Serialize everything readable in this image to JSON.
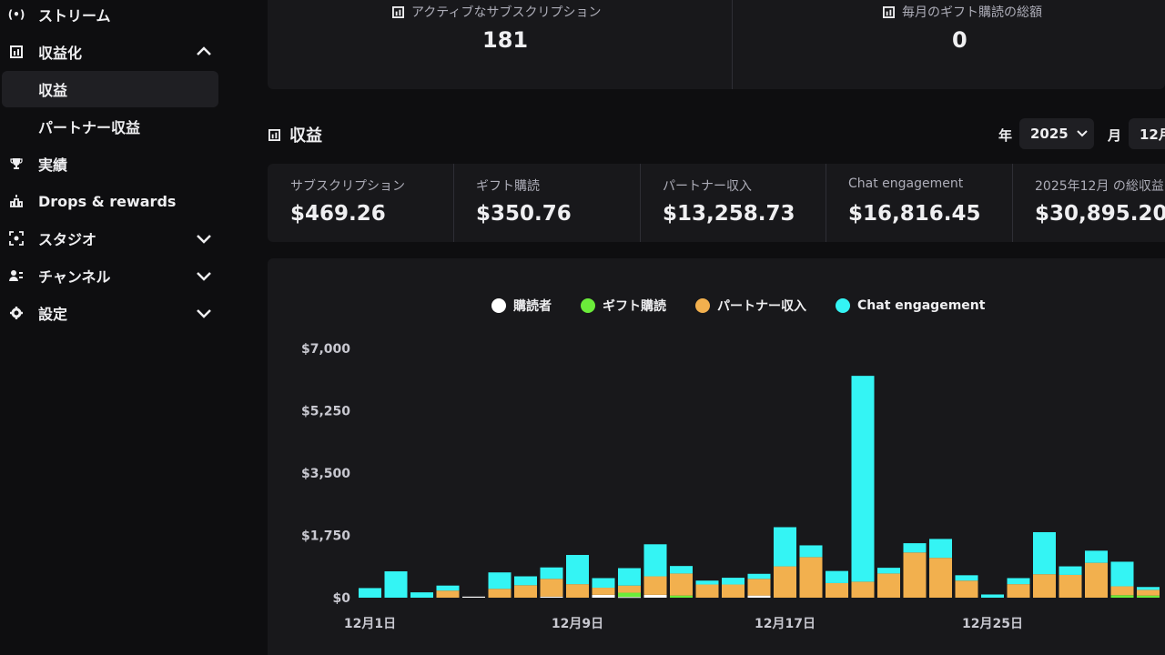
{
  "sidebar": {
    "items": [
      {
        "label": "ストリーム",
        "icon": "broadcast-icon"
      },
      {
        "label": "収益化",
        "icon": "chart-icon",
        "expanded": true
      },
      {
        "label": "収益",
        "active": true
      },
      {
        "label": "パートナー収益"
      },
      {
        "label": "実績",
        "icon": "trophy-icon"
      },
      {
        "label": "Drops & rewards",
        "icon": "drops-icon"
      },
      {
        "label": "スタジオ",
        "icon": "studio-icon"
      },
      {
        "label": "チャンネル",
        "icon": "channel-icon"
      },
      {
        "label": "設定",
        "icon": "gear-icon"
      }
    ]
  },
  "top_stats": [
    {
      "label": "アクティブなサブスクリプション",
      "value": "181"
    },
    {
      "label": "毎月のギフト購読の総額",
      "value": "0"
    }
  ],
  "section": {
    "title": "収益",
    "year_label": "年",
    "year_value": "2025",
    "month_label": "月",
    "month_value": "12月"
  },
  "revenue": [
    {
      "label": "サブスクリプション",
      "value": "$469.26"
    },
    {
      "label": "ギフト購読",
      "value": "$350.76"
    },
    {
      "label": "パートナー収入",
      "value": "$13,258.73"
    },
    {
      "label": "Chat engagement",
      "value": "$16,816.45"
    },
    {
      "label": "2025年12月 の総収益",
      "value": "$30,895.20"
    }
  ],
  "colors": {
    "subscribers": "#ffffff",
    "gifts": "#6bec3a",
    "partner": "#f2b04e",
    "chat": "#34f4f4",
    "panel": "#18181b",
    "background": "#0e0e10"
  },
  "chart_data": {
    "type": "bar",
    "stacked": true,
    "legend_position": "top-center",
    "ylim": [
      0,
      7000
    ],
    "yticks": [
      "$7,000",
      "$5,250",
      "$3,500",
      "$1,750",
      "$0"
    ],
    "ytick_values": [
      7000,
      5250,
      3500,
      1750,
      0
    ],
    "xtick_labels": [
      {
        "day": 1,
        "label": "12月1日"
      },
      {
        "day": 9,
        "label": "12月9日"
      },
      {
        "day": 17,
        "label": "12月17日"
      },
      {
        "day": 25,
        "label": "12月25日"
      }
    ],
    "days": [
      1,
      2,
      3,
      4,
      5,
      6,
      7,
      8,
      9,
      10,
      11,
      12,
      13,
      14,
      15,
      16,
      17,
      18,
      19,
      20,
      21,
      22,
      23,
      24,
      25,
      26,
      27,
      28,
      29,
      30,
      31
    ],
    "series": [
      {
        "name": "購読者",
        "key": "subscribers",
        "values": [
          0,
          0,
          0,
          0,
          30,
          0,
          0,
          30,
          0,
          80,
          20,
          80,
          0,
          0,
          0,
          60,
          0,
          0,
          0,
          0,
          0,
          0,
          0,
          0,
          0,
          0,
          0,
          0,
          0,
          0,
          0
        ]
      },
      {
        "name": "ギフト購読",
        "key": "gifts",
        "values": [
          0,
          0,
          0,
          0,
          0,
          0,
          0,
          0,
          0,
          0,
          120,
          0,
          60,
          0,
          0,
          0,
          0,
          0,
          0,
          0,
          0,
          0,
          0,
          0,
          0,
          0,
          0,
          0,
          0,
          70,
          60
        ]
      },
      {
        "name": "パートナー収入",
        "key": "partner",
        "values": [
          0,
          0,
          0,
          200,
          0,
          250,
          350,
          500,
          380,
          200,
          200,
          520,
          620,
          370,
          370,
          470,
          880,
          1140,
          410,
          450,
          680,
          1270,
          1120,
          480,
          0,
          380,
          660,
          640,
          980,
          250,
          160
        ]
      },
      {
        "name": "Chat engagement",
        "key": "chat",
        "values": [
          270,
          740,
          150,
          140,
          0,
          460,
          250,
          320,
          820,
          270,
          490,
          900,
          210,
          110,
          190,
          140,
          1100,
          330,
          340,
          5780,
          160,
          260,
          530,
          150,
          90,
          170,
          1180,
          240,
          340,
          690,
          80
        ]
      }
    ]
  }
}
